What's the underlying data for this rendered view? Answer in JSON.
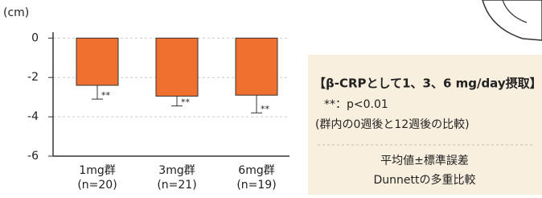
{
  "chart_data": {
    "type": "bar",
    "y_label": "(cm)",
    "categories": [
      "1mg群",
      "3mg群",
      "6mg群"
    ],
    "sample_sizes": [
      "(n=20)",
      "(n=21)",
      "(n=19)"
    ],
    "values": [
      -2.4,
      -2.95,
      -2.9
    ],
    "errors": [
      0.7,
      0.5,
      0.9
    ],
    "significance": [
      "**",
      "**",
      "**"
    ],
    "color": "#f07030",
    "ylim": [
      -6,
      0.3
    ],
    "yticks": [
      0,
      -2,
      -4,
      -6
    ],
    "grid": true
  },
  "note_box": {
    "title": "【β-CRPとして1、3、6 mg/day摂取】",
    "lines": [
      "**：p<0.01",
      "(群内の0週後と12週後の比較)"
    ],
    "footer": [
      "平均値±標準誤差",
      "Dunnettの多重比較"
    ]
  }
}
